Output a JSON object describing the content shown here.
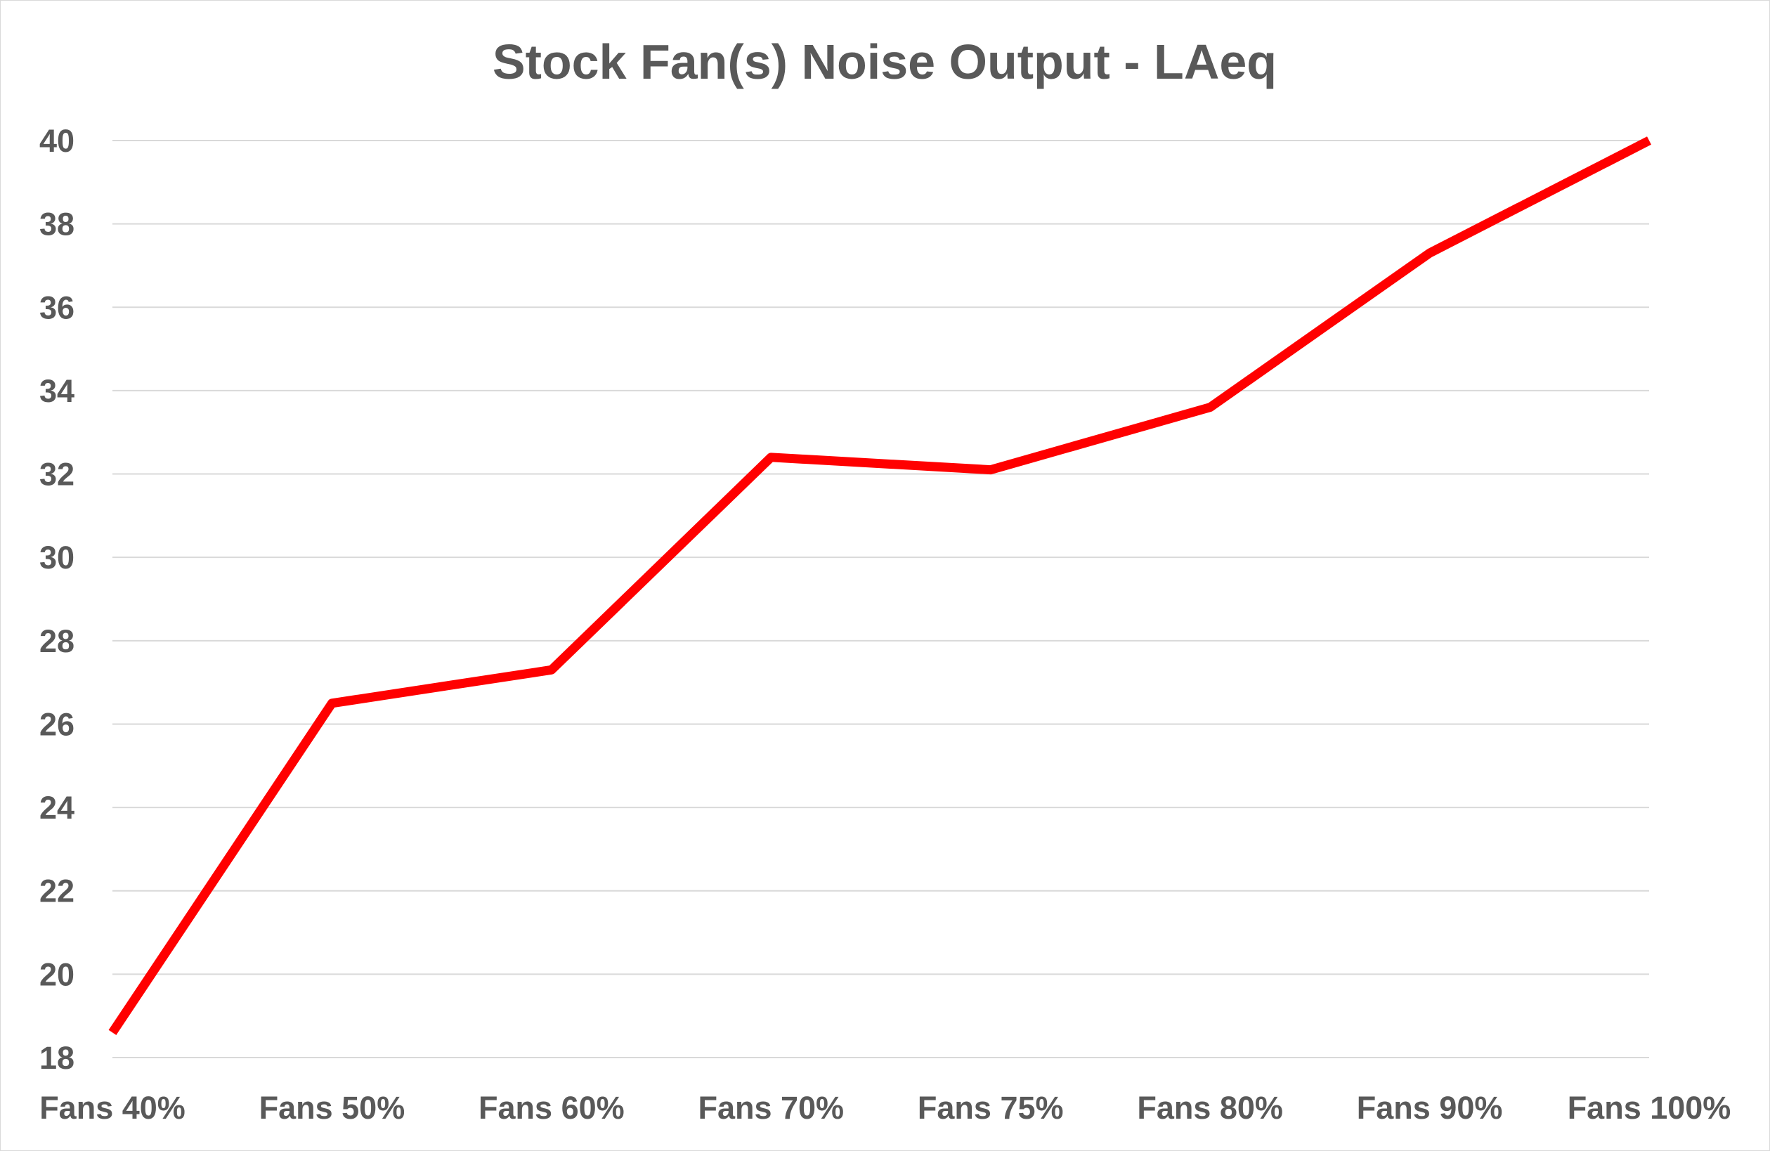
{
  "chart_data": {
    "type": "line",
    "title": "Stock Fan(s) Noise Output - LAeq",
    "xlabel": "",
    "ylabel": "",
    "categories": [
      "Fans 40%",
      "Fans 50%",
      "Fans 60%",
      "Fans 70%",
      "Fans 75%",
      "Fans 80%",
      "Fans 90%",
      "Fans 100%"
    ],
    "series": [
      {
        "values": [
          18.6,
          26.5,
          27.3,
          32.4,
          32.1,
          33.6,
          37.3,
          40.0
        ],
        "color": "#ff0000"
      }
    ],
    "ylim": [
      18,
      40
    ],
    "yticks": [
      "18",
      "20",
      "22",
      "24",
      "26",
      "28",
      "30",
      "32",
      "34",
      "36",
      "38",
      "40"
    ],
    "grid": true,
    "legend": "none"
  }
}
